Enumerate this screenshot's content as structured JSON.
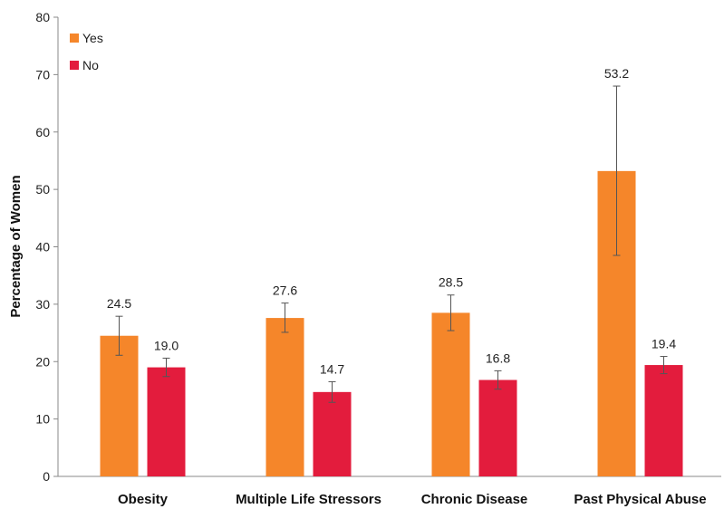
{
  "chart_data": {
    "type": "bar",
    "ylabel": "Percentage of Women",
    "ylim": [
      0,
      80
    ],
    "yticks": [
      0,
      10,
      20,
      30,
      40,
      50,
      60,
      70,
      80
    ],
    "grid": false,
    "legend_position": "top-left",
    "categories": [
      "Obesity",
      "Multiple Life Stressors",
      "Chronic Disease",
      "Past Physical Abuse"
    ],
    "series": [
      {
        "name": "Yes",
        "color": "#F5862A",
        "values": [
          24.5,
          27.6,
          28.5,
          53.2
        ],
        "labels": [
          "24.5",
          "27.6",
          "28.5",
          "53.2"
        ],
        "error_low": [
          21.1,
          25.1,
          25.4,
          38.5
        ],
        "error_high": [
          27.9,
          30.2,
          31.6,
          68.0
        ]
      },
      {
        "name": "No",
        "color": "#E31C3D",
        "values": [
          19.0,
          14.7,
          16.8,
          19.4
        ],
        "labels": [
          "19.0",
          "14.7",
          "16.8",
          "19.4"
        ],
        "error_low": [
          17.4,
          12.9,
          15.2,
          17.9
        ],
        "error_high": [
          20.6,
          16.5,
          18.4,
          20.9
        ]
      }
    ]
  }
}
